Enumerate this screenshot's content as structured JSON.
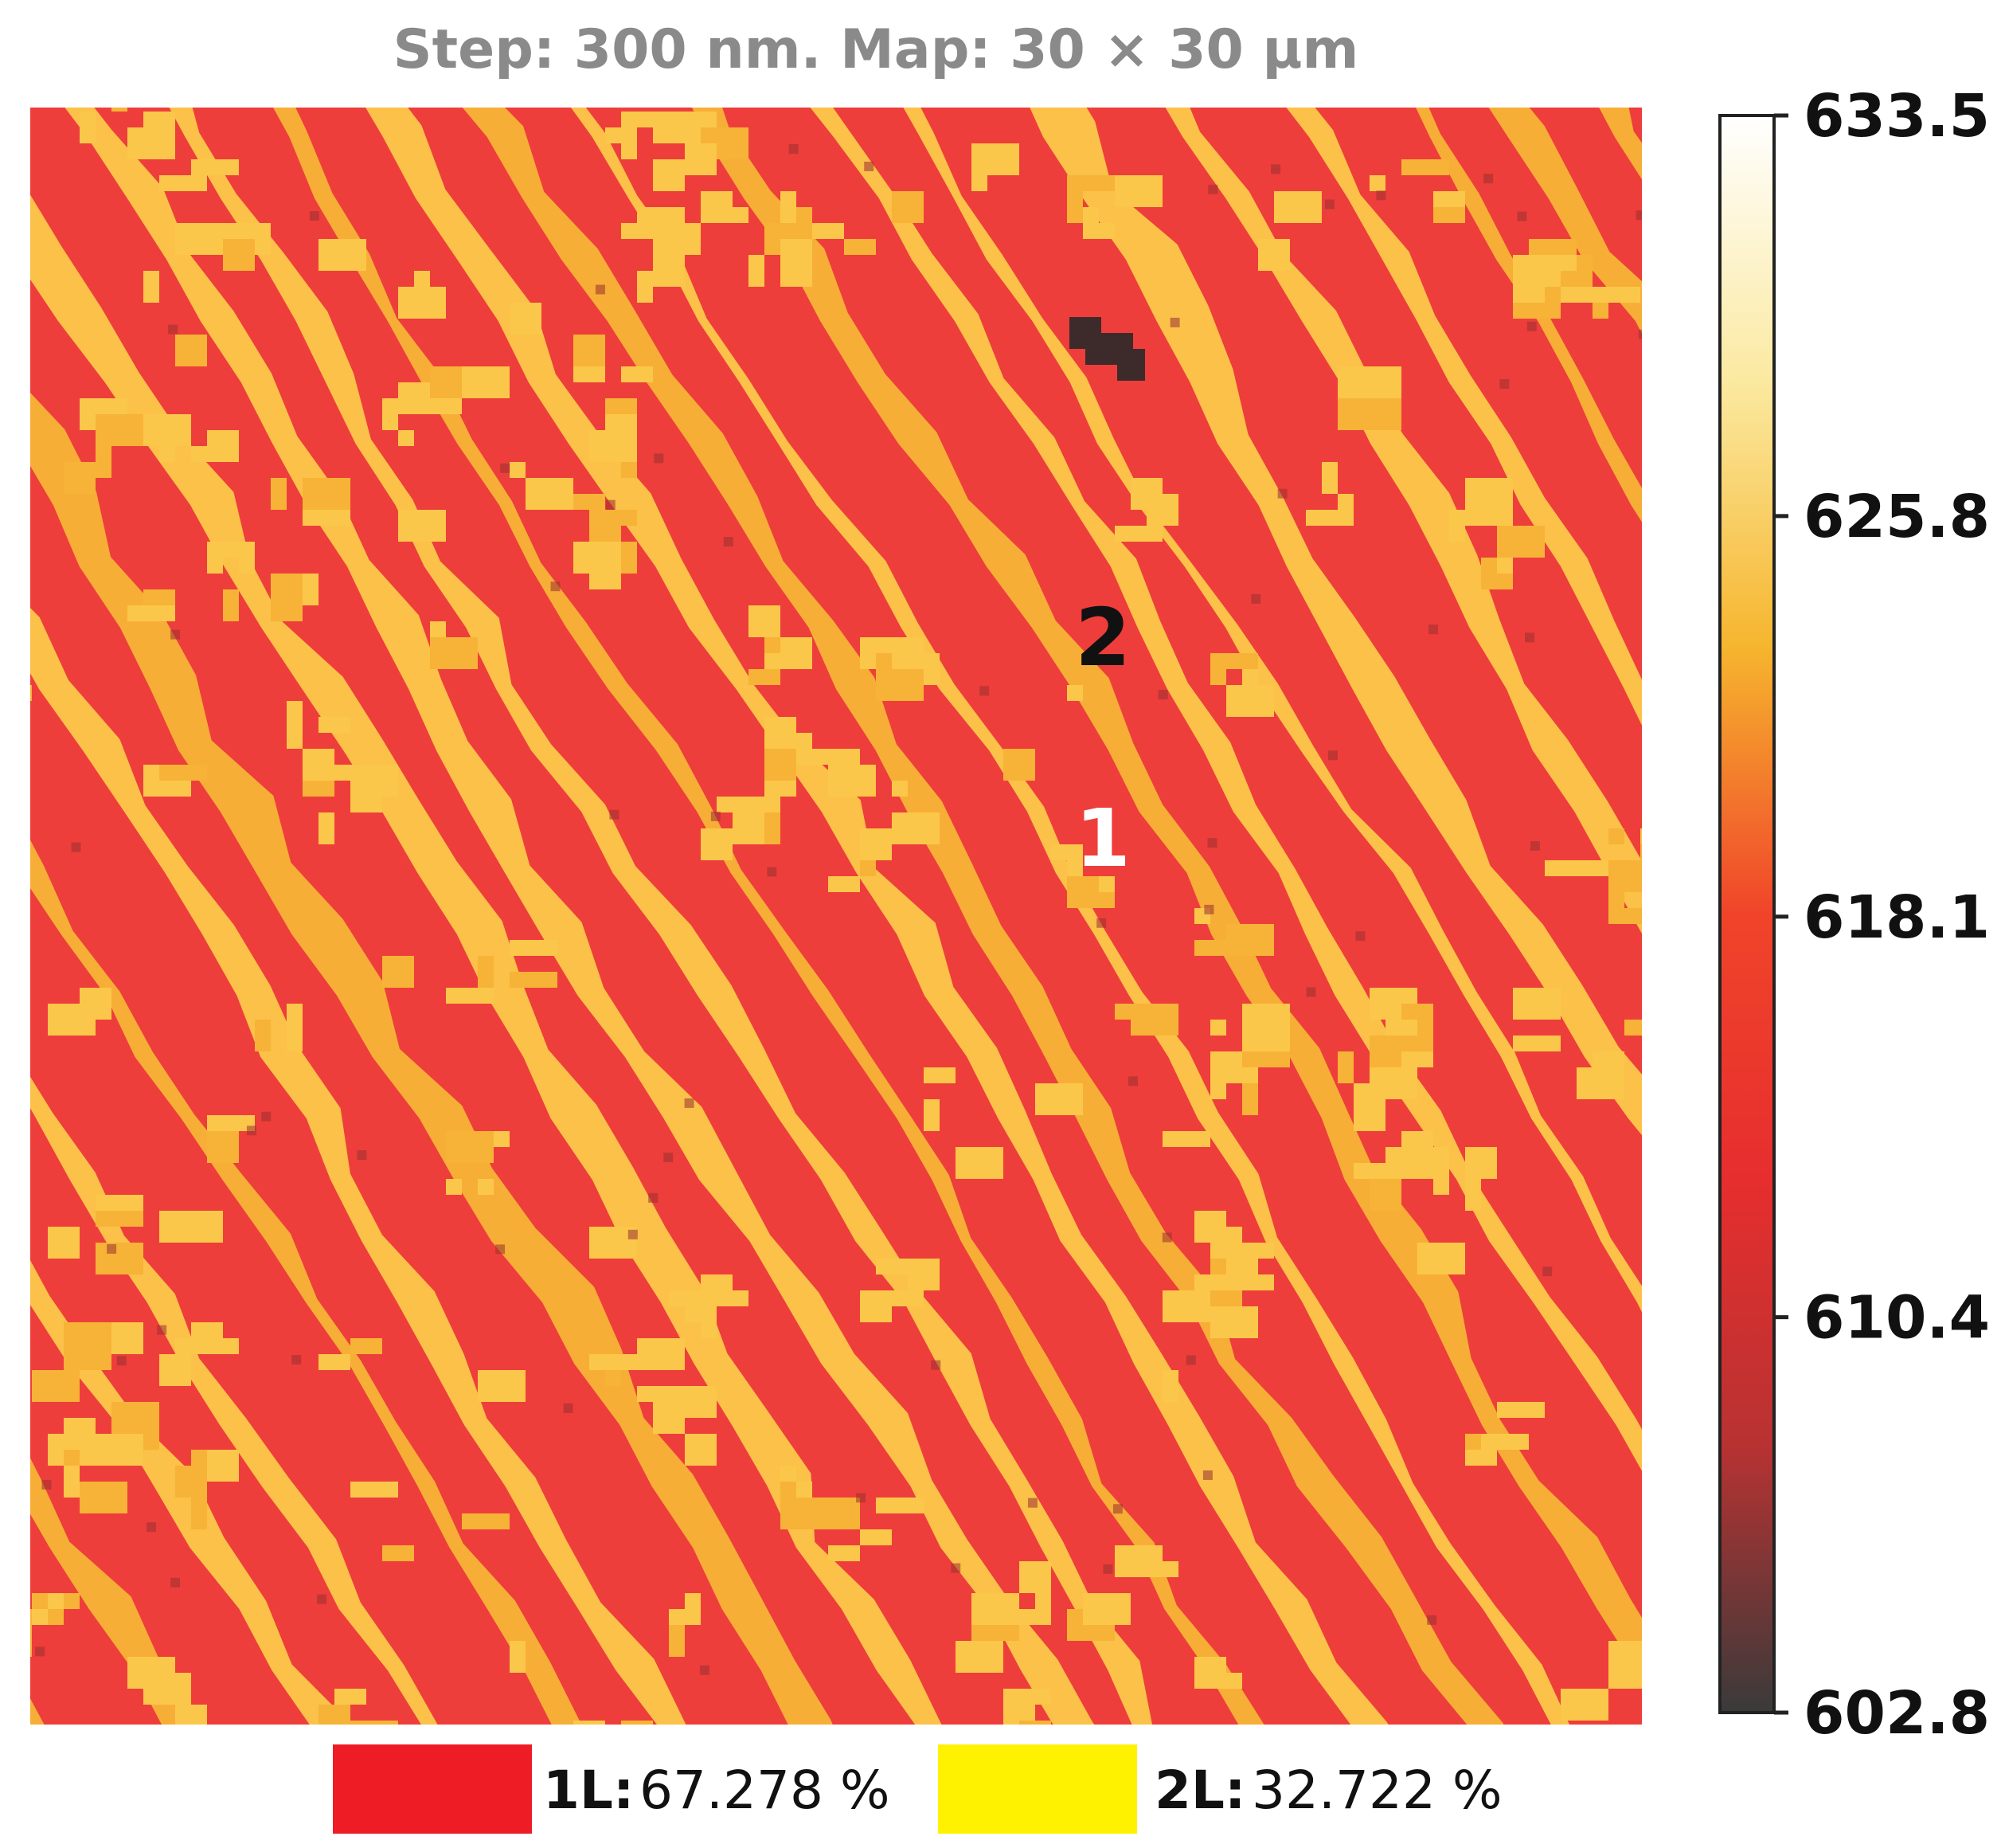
{
  "chart_data": {
    "type": "heatmap",
    "title": "Step: 300 nm. Map: 30 × 30 µm",
    "colorbar": {
      "min": 602.8,
      "max": 633.5,
      "ticks": [
        {
          "value": 633.5,
          "label": "633.5"
        },
        {
          "value": 625.8,
          "label": "625.8"
        },
        {
          "value": 618.1,
          "label": "618.1"
        },
        {
          "value": 610.4,
          "label": "610.4"
        },
        {
          "value": 602.8,
          "label": "602.8"
        }
      ],
      "colors": [
        "#3a3a3a",
        "#b83232",
        "#e62e2e",
        "#f0442a",
        "#f6b52e",
        "#fbe9a0",
        "#ffffff"
      ]
    },
    "classes": [
      {
        "key": "1L:",
        "percent": 67.278,
        "display": "67.278 %",
        "color": "#ee1c25"
      },
      {
        "key": "2L:",
        "percent": 32.722,
        "display": "32.722 %",
        "color": "#fff200"
      }
    ],
    "markers": [
      {
        "label": "2",
        "color": "#111111"
      },
      {
        "label": "1",
        "color": "#ffffff"
      }
    ],
    "map_colors": {
      "base": "#ee3e3b",
      "stripe": "#f7b337",
      "stripe_light": "#fbc74a",
      "defect": "#3d2b2b"
    }
  }
}
